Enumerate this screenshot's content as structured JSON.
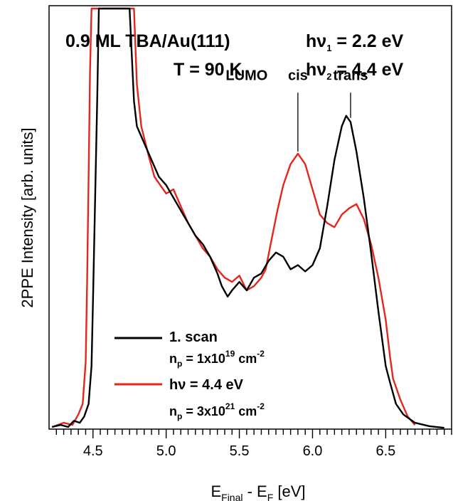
{
  "chart_data": {
    "type": "line",
    "title_line1": "0.9 ML TBA/Au(111)",
    "title_line2": "T = 90 K",
    "photon_hv": "hν",
    "photon1_sub": "1",
    "photon1_val": " = 2.2 eV",
    "photon2_sub": "2",
    "photon2_val": " = 4.4 eV",
    "xlabel": {
      "e": "E",
      "final": "Final",
      "minus": " - E",
      "f": "F",
      "unit": " [eV]"
    },
    "ylabel": "2PPE Intensity [arb. units]",
    "xlim": [
      4.2,
      6.95
    ],
    "ylim": [
      0,
      100
    ],
    "xticks": [
      {
        "value": 4.5,
        "label": "4.5"
      },
      {
        "value": 5.0,
        "label": "5.0"
      },
      {
        "value": 5.5,
        "label": "5.5"
      },
      {
        "value": 6.0,
        "label": "6.0"
      },
      {
        "value": 6.5,
        "label": "6.5"
      }
    ],
    "annotations": [
      {
        "text": "LUMO",
        "x": 5.55,
        "y": 83
      },
      {
        "text": "cis",
        "x": 5.9,
        "y": 83,
        "line_from": 80,
        "line_to": 66
      },
      {
        "text": "trans",
        "x": 6.26,
        "y": 83,
        "line_from": 80,
        "line_to": 74
      }
    ],
    "series": [
      {
        "name": "1. scan",
        "color": "#000000",
        "np_label": "n",
        "np_sub": "p",
        "np_val": " = 1x10",
        "np_exp": "19",
        "np_unit": " cm",
        "np_unit_exp": "-2",
        "points": [
          [
            4.22,
            0.5
          ],
          [
            4.28,
            1
          ],
          [
            4.33,
            0.5
          ],
          [
            4.37,
            2
          ],
          [
            4.41,
            1.5
          ],
          [
            4.44,
            3
          ],
          [
            4.47,
            6
          ],
          [
            4.49,
            15
          ],
          [
            4.5,
            30
          ],
          [
            4.515,
            55
          ],
          [
            4.53,
            80
          ],
          [
            4.54,
            100
          ],
          [
            4.75,
            100
          ],
          [
            4.78,
            78
          ],
          [
            4.8,
            72
          ],
          [
            4.85,
            68
          ],
          [
            4.9,
            64
          ],
          [
            4.95,
            60
          ],
          [
            5.0,
            58
          ],
          [
            5.05,
            55
          ],
          [
            5.1,
            52
          ],
          [
            5.15,
            49
          ],
          [
            5.2,
            46
          ],
          [
            5.25,
            44
          ],
          [
            5.3,
            41
          ],
          [
            5.35,
            37
          ],
          [
            5.38,
            34
          ],
          [
            5.42,
            31.5
          ],
          [
            5.45,
            33
          ],
          [
            5.5,
            35
          ],
          [
            5.55,
            33
          ],
          [
            5.6,
            36
          ],
          [
            5.65,
            37
          ],
          [
            5.7,
            40
          ],
          [
            5.75,
            42
          ],
          [
            5.8,
            41
          ],
          [
            5.85,
            38
          ],
          [
            5.9,
            39
          ],
          [
            5.95,
            37.5
          ],
          [
            6.0,
            39
          ],
          [
            6.05,
            43
          ],
          [
            6.1,
            53
          ],
          [
            6.15,
            64
          ],
          [
            6.2,
            72
          ],
          [
            6.23,
            74.5
          ],
          [
            6.26,
            73
          ],
          [
            6.3,
            66
          ],
          [
            6.35,
            55
          ],
          [
            6.4,
            42
          ],
          [
            6.45,
            28
          ],
          [
            6.5,
            15
          ],
          [
            6.53,
            11
          ],
          [
            6.57,
            6
          ],
          [
            6.62,
            3.5
          ],
          [
            6.7,
            1.5
          ],
          [
            6.8,
            0.7
          ],
          [
            6.9,
            0.3
          ]
        ]
      },
      {
        "name": "hν = 4.4 eV",
        "color": "#e4261c",
        "np_label": "n",
        "np_sub": "p",
        "np_val": " = 3x10",
        "np_exp": "21",
        "np_unit": " cm",
        "np_unit_exp": "-2",
        "points": [
          [
            4.22,
            0.5
          ],
          [
            4.3,
            1.5
          ],
          [
            4.36,
            1
          ],
          [
            4.4,
            3.5
          ],
          [
            4.43,
            6
          ],
          [
            4.45,
            16
          ],
          [
            4.46,
            35
          ],
          [
            4.47,
            60
          ],
          [
            4.48,
            85
          ],
          [
            4.49,
            100
          ],
          [
            4.78,
            100
          ],
          [
            4.8,
            82
          ],
          [
            4.83,
            72
          ],
          [
            4.88,
            65
          ],
          [
            4.92,
            60
          ],
          [
            4.96,
            58
          ],
          [
            5.0,
            56
          ],
          [
            5.05,
            57
          ],
          [
            5.1,
            53
          ],
          [
            5.15,
            49
          ],
          [
            5.2,
            46
          ],
          [
            5.25,
            43
          ],
          [
            5.3,
            41
          ],
          [
            5.35,
            38
          ],
          [
            5.4,
            36
          ],
          [
            5.45,
            35
          ],
          [
            5.5,
            36.5
          ],
          [
            5.55,
            33
          ],
          [
            5.6,
            34
          ],
          [
            5.65,
            36
          ],
          [
            5.68,
            38
          ],
          [
            5.72,
            45
          ],
          [
            5.76,
            52
          ],
          [
            5.8,
            58
          ],
          [
            5.85,
            63
          ],
          [
            5.9,
            65.5
          ],
          [
            5.95,
            63
          ],
          [
            6.0,
            57
          ],
          [
            6.05,
            51
          ],
          [
            6.1,
            49
          ],
          [
            6.15,
            48
          ],
          [
            6.2,
            51
          ],
          [
            6.25,
            52.5
          ],
          [
            6.3,
            53.5
          ],
          [
            6.35,
            50
          ],
          [
            6.4,
            44
          ],
          [
            6.45,
            36
          ],
          [
            6.5,
            26
          ],
          [
            6.53,
            17
          ],
          [
            6.55,
            12
          ],
          [
            6.6,
            7
          ],
          [
            6.65,
            3
          ],
          [
            6.7,
            1
          ]
        ]
      }
    ]
  }
}
